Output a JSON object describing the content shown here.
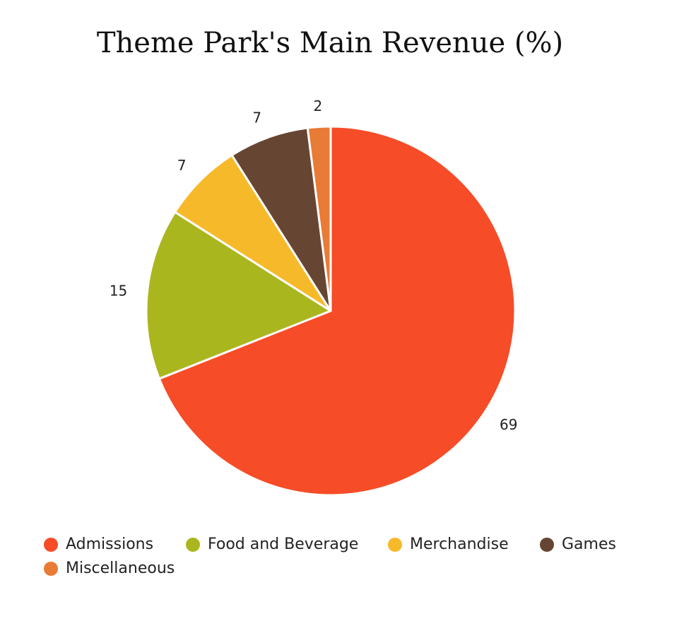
{
  "chart_data": {
    "type": "pie",
    "title": "Theme Park's Main Revenue (%)",
    "categories": [
      "Admissions",
      "Food and Beverage",
      "Merchandise",
      "Games",
      "Miscellaneous"
    ],
    "values": [
      69,
      15,
      7,
      7,
      2
    ],
    "colors": [
      "#f64c27",
      "#aab61d",
      "#f6b929",
      "#674533",
      "#e87b35"
    ],
    "legend_position": "bottom"
  }
}
